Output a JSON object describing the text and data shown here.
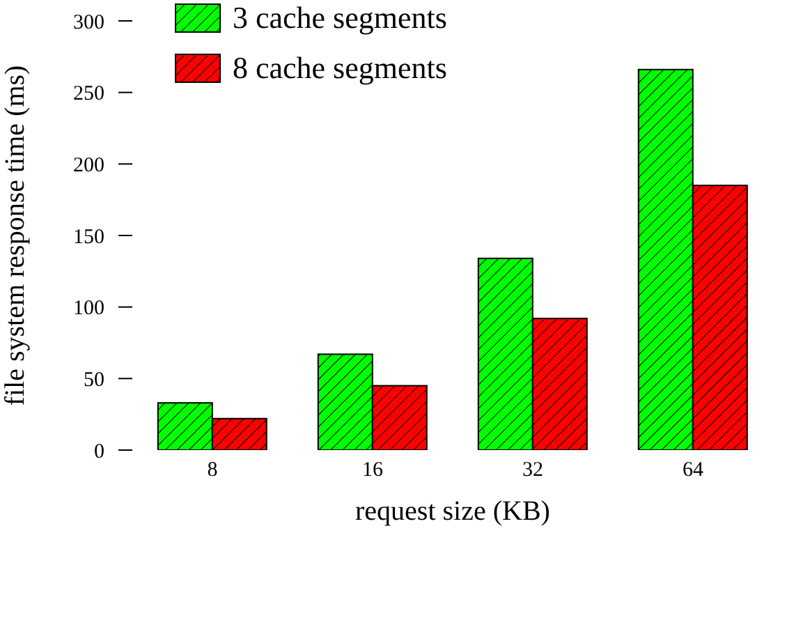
{
  "chart_data": {
    "type": "bar",
    "xlabel": "request size (KB)",
    "ylabel": "file system response time (ms)",
    "categories": [
      "8",
      "16",
      "32",
      "64"
    ],
    "series": [
      {
        "name": "3 cache segments",
        "color": "#00ff00",
        "values": [
          33,
          67,
          134,
          266
        ]
      },
      {
        "name": "8 cache segments",
        "color": "#ff0000",
        "values": [
          22,
          45,
          92,
          185
        ]
      }
    ],
    "ylim": [
      0,
      300
    ],
    "yticks": [
      0,
      50,
      100,
      150,
      200,
      250,
      300
    ],
    "grid": false,
    "legend": "top left"
  }
}
